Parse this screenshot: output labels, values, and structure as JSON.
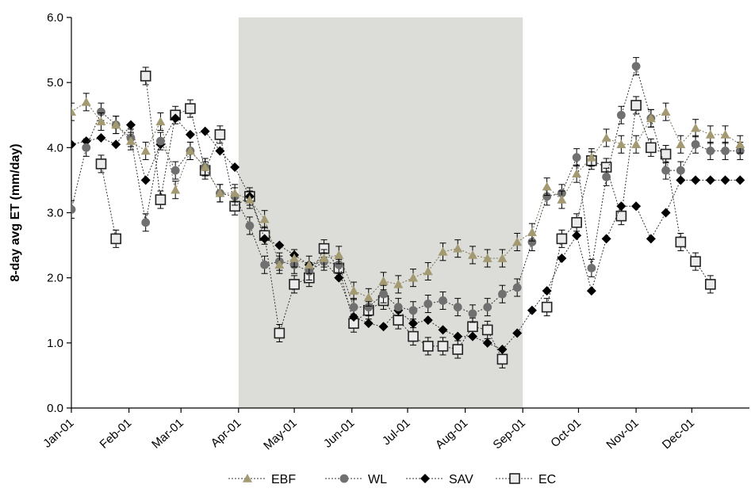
{
  "chart_data": {
    "type": "line",
    "ylabel": "8-day avg ET (mm/day)",
    "ylim": [
      0,
      6
    ],
    "yticks": [
      "0.0",
      "1.0",
      "2.0",
      "3.0",
      "4.0",
      "5.0",
      "6.0"
    ],
    "month_labels": [
      "Jan-01",
      "Feb-01",
      "Mar-01",
      "Apr-01",
      "May-01",
      "Jun-01",
      "Jul-01",
      "Aug-01",
      "Sep-01",
      "Oct-01",
      "Nov-01",
      "Dec-01"
    ],
    "x_unit": "day of year",
    "x_range": [
      1,
      366
    ],
    "month_start_days": [
      1,
      32,
      60,
      91,
      121,
      152,
      182,
      213,
      244,
      274,
      305,
      335
    ],
    "shaded_region": {
      "from": 91,
      "to": 244,
      "color": "#dcdcd8"
    },
    "legend_position": "bottom-center",
    "series": [
      {
        "name": "EBF",
        "marker": "triangle",
        "color": "#a39a72",
        "x": [
          1,
          9,
          17,
          25,
          33,
          41,
          49,
          57,
          65,
          73,
          81,
          89,
          97,
          105,
          113,
          121,
          129,
          137,
          145,
          153,
          161,
          169,
          177,
          185,
          193,
          201,
          209,
          217,
          225,
          233,
          241,
          249,
          257,
          265,
          273,
          281,
          289,
          297,
          305,
          313,
          321,
          329,
          337,
          345,
          353,
          361
        ],
        "y": [
          4.55,
          4.7,
          4.4,
          4.35,
          4.1,
          3.95,
          4.4,
          3.35,
          3.95,
          3.7,
          3.3,
          3.3,
          3.2,
          2.9,
          2.2,
          2.3,
          2.2,
          2.3,
          2.35,
          1.8,
          1.7,
          1.95,
          1.9,
          2.0,
          2.1,
          2.4,
          2.45,
          2.35,
          2.3,
          2.3,
          2.55,
          2.7,
          3.4,
          3.2,
          3.6,
          3.85,
          4.15,
          4.05,
          4.05,
          4.45,
          4.55,
          4.05,
          4.3,
          4.2,
          4.2,
          4.05
        ]
      },
      {
        "name": "WL",
        "marker": "circle",
        "color": "#707070",
        "x": [
          1,
          9,
          17,
          25,
          33,
          41,
          49,
          57,
          65,
          73,
          81,
          89,
          97,
          105,
          113,
          121,
          129,
          137,
          145,
          153,
          161,
          169,
          177,
          185,
          193,
          201,
          209,
          217,
          225,
          233,
          241,
          249,
          257,
          265,
          273,
          281,
          289,
          297,
          305,
          313,
          321,
          329,
          337,
          345,
          353,
          361
        ],
        "y": [
          3.05,
          4.0,
          4.55,
          4.35,
          4.15,
          2.85,
          4.1,
          3.65,
          3.95,
          3.7,
          3.3,
          3.25,
          2.8,
          2.2,
          2.25,
          2.2,
          2.1,
          2.25,
          2.2,
          1.55,
          1.55,
          1.75,
          1.55,
          1.5,
          1.6,
          1.65,
          1.55,
          1.45,
          1.55,
          1.75,
          1.85,
          2.55,
          3.25,
          3.3,
          3.85,
          2.15,
          3.55,
          4.5,
          5.25,
          4.45,
          3.65,
          3.65,
          4.05,
          3.95,
          3.95,
          3.95
        ]
      },
      {
        "name": "SAV",
        "marker": "diamond",
        "color": "#000000",
        "x": [
          1,
          9,
          17,
          25,
          33,
          41,
          49,
          57,
          65,
          73,
          81,
          89,
          97,
          105,
          113,
          121,
          129,
          137,
          145,
          153,
          161,
          169,
          177,
          185,
          193,
          201,
          209,
          217,
          225,
          233,
          241,
          249,
          257,
          265,
          273,
          281,
          289,
          297,
          305,
          313,
          321,
          329,
          337,
          345,
          353,
          361
        ],
        "y": [
          4.05,
          4.1,
          4.15,
          4.05,
          4.35,
          3.5,
          4.05,
          4.45,
          4.2,
          4.25,
          3.95,
          3.7,
          3.25,
          2.6,
          2.5,
          2.35,
          2.2,
          2.25,
          2.0,
          1.4,
          1.3,
          1.25,
          1.5,
          1.3,
          1.35,
          1.2,
          1.1,
          1.1,
          1.0,
          0.9,
          1.15,
          1.5,
          1.8,
          2.3,
          2.65,
          1.8,
          2.6,
          3.1,
          3.1,
          2.6,
          3.0,
          3.5,
          3.5,
          3.5,
          3.5,
          3.5
        ]
      },
      {
        "name": "EC",
        "marker": "square",
        "color": "#555555",
        "x": [
          1,
          9,
          17,
          25,
          33,
          41,
          49,
          57,
          65,
          73,
          81,
          89,
          97,
          105,
          113,
          121,
          129,
          137,
          145,
          153,
          161,
          169,
          177,
          185,
          193,
          201,
          209,
          217,
          225,
          233,
          241,
          249,
          257,
          265,
          273,
          281,
          289,
          297,
          305,
          313,
          321,
          329,
          337,
          345
        ],
        "y": [
          null,
          null,
          3.75,
          2.6,
          null,
          5.1,
          3.2,
          4.5,
          4.6,
          3.65,
          4.2,
          3.1,
          3.25,
          2.65,
          1.15,
          1.9,
          2.0,
          2.45,
          2.15,
          1.3,
          1.5,
          1.65,
          1.35,
          1.1,
          0.95,
          0.95,
          0.9,
          1.25,
          1.2,
          0.75,
          null,
          null,
          1.55,
          2.6,
          2.85,
          3.8,
          3.7,
          2.95,
          4.65,
          4.0,
          3.9,
          2.55,
          2.25,
          1.9
        ]
      }
    ]
  }
}
